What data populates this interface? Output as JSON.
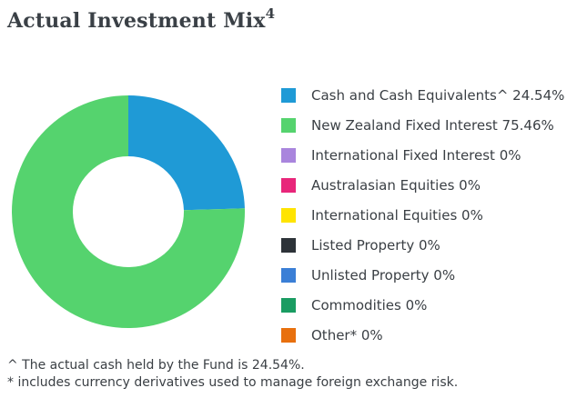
{
  "title": {
    "text": "Actual Investment Mix",
    "superscript": "4"
  },
  "chart_data": {
    "type": "pie",
    "title": "Actual Investment Mix",
    "donut": true,
    "legend_position": "right",
    "series": [
      {
        "label": "Cash and Cash Equivalents^ 24.54%",
        "name": "Cash and Cash Equivalents^",
        "value": 24.54,
        "color": "#1f9ad6"
      },
      {
        "label": "New Zealand Fixed Interest 75.46%",
        "name": "New Zealand Fixed Interest",
        "value": 75.46,
        "color": "#55d36e"
      },
      {
        "label": "International Fixed Interest 0%",
        "name": "International Fixed Interest",
        "value": 0,
        "color": "#a985dd"
      },
      {
        "label": "Australasian Equities 0%",
        "name": "Australasian Equities",
        "value": 0,
        "color": "#e8267a"
      },
      {
        "label": "International Equities 0%",
        "name": "International Equities",
        "value": 0,
        "color": "#ffe400"
      },
      {
        "label": "Listed Property 0%",
        "name": "Listed Property",
        "value": 0,
        "color": "#2d3339"
      },
      {
        "label": "Unlisted Property 0%",
        "name": "Unlisted Property",
        "value": 0,
        "color": "#3b7fd6"
      },
      {
        "label": "Commodities 0%",
        "name": "Commodities",
        "value": 0,
        "color": "#1a9c62"
      },
      {
        "label": "Other* 0%",
        "name": "Other*",
        "value": 0,
        "color": "#e8700e"
      }
    ]
  },
  "footnotes": {
    "cash": "^ The actual cash held by the Fund is 24.54%.",
    "derivatives": "* includes currency derivatives used to manage foreign exchange risk."
  }
}
